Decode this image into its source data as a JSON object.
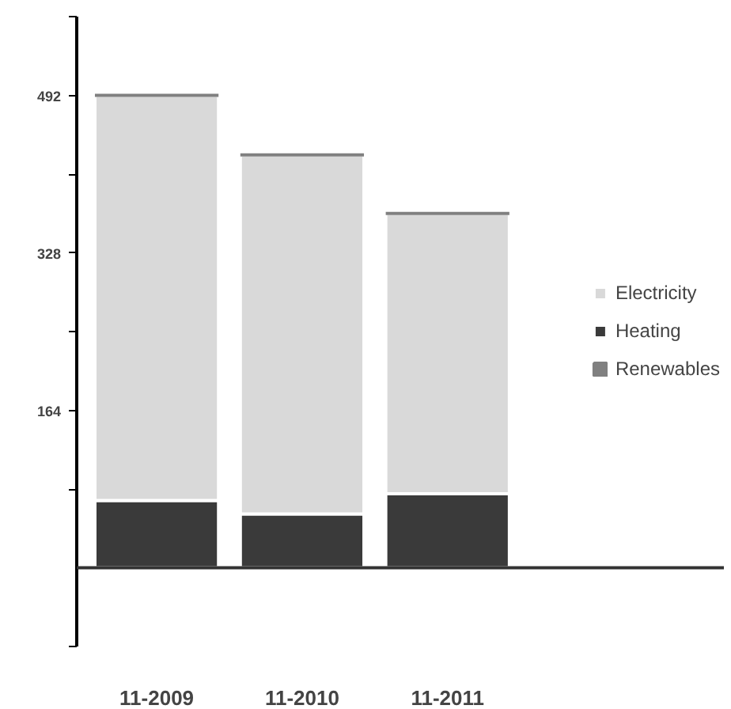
{
  "chart_data": {
    "type": "bar",
    "stacked": true,
    "categories": [
      "11-2009",
      "11-2010",
      "11-2011"
    ],
    "series": [
      {
        "name": "Heating",
        "color": "#3a3a3a",
        "values": [
          70,
          56,
          77
        ]
      },
      {
        "name": "Electricity",
        "color": "#d9d9d9",
        "values": [
          422,
          374,
          292
        ]
      },
      {
        "name": "Renewables",
        "color": "#808080",
        "values": [
          0,
          0,
          0
        ]
      }
    ],
    "ylim": [
      -82,
      574
    ],
    "yticks": [
      {
        "value": -82,
        "label": null
      },
      {
        "value": 82,
        "label": null
      },
      164,
      {
        "value": 246,
        "label": null
      },
      328,
      {
        "value": 410,
        "label": null
      },
      492,
      {
        "value": 574,
        "label": null
      }
    ],
    "ref_lines": [
      {
        "axis": "y",
        "value": 0,
        "label": null
      }
    ],
    "legend": "right",
    "grid": false
  }
}
